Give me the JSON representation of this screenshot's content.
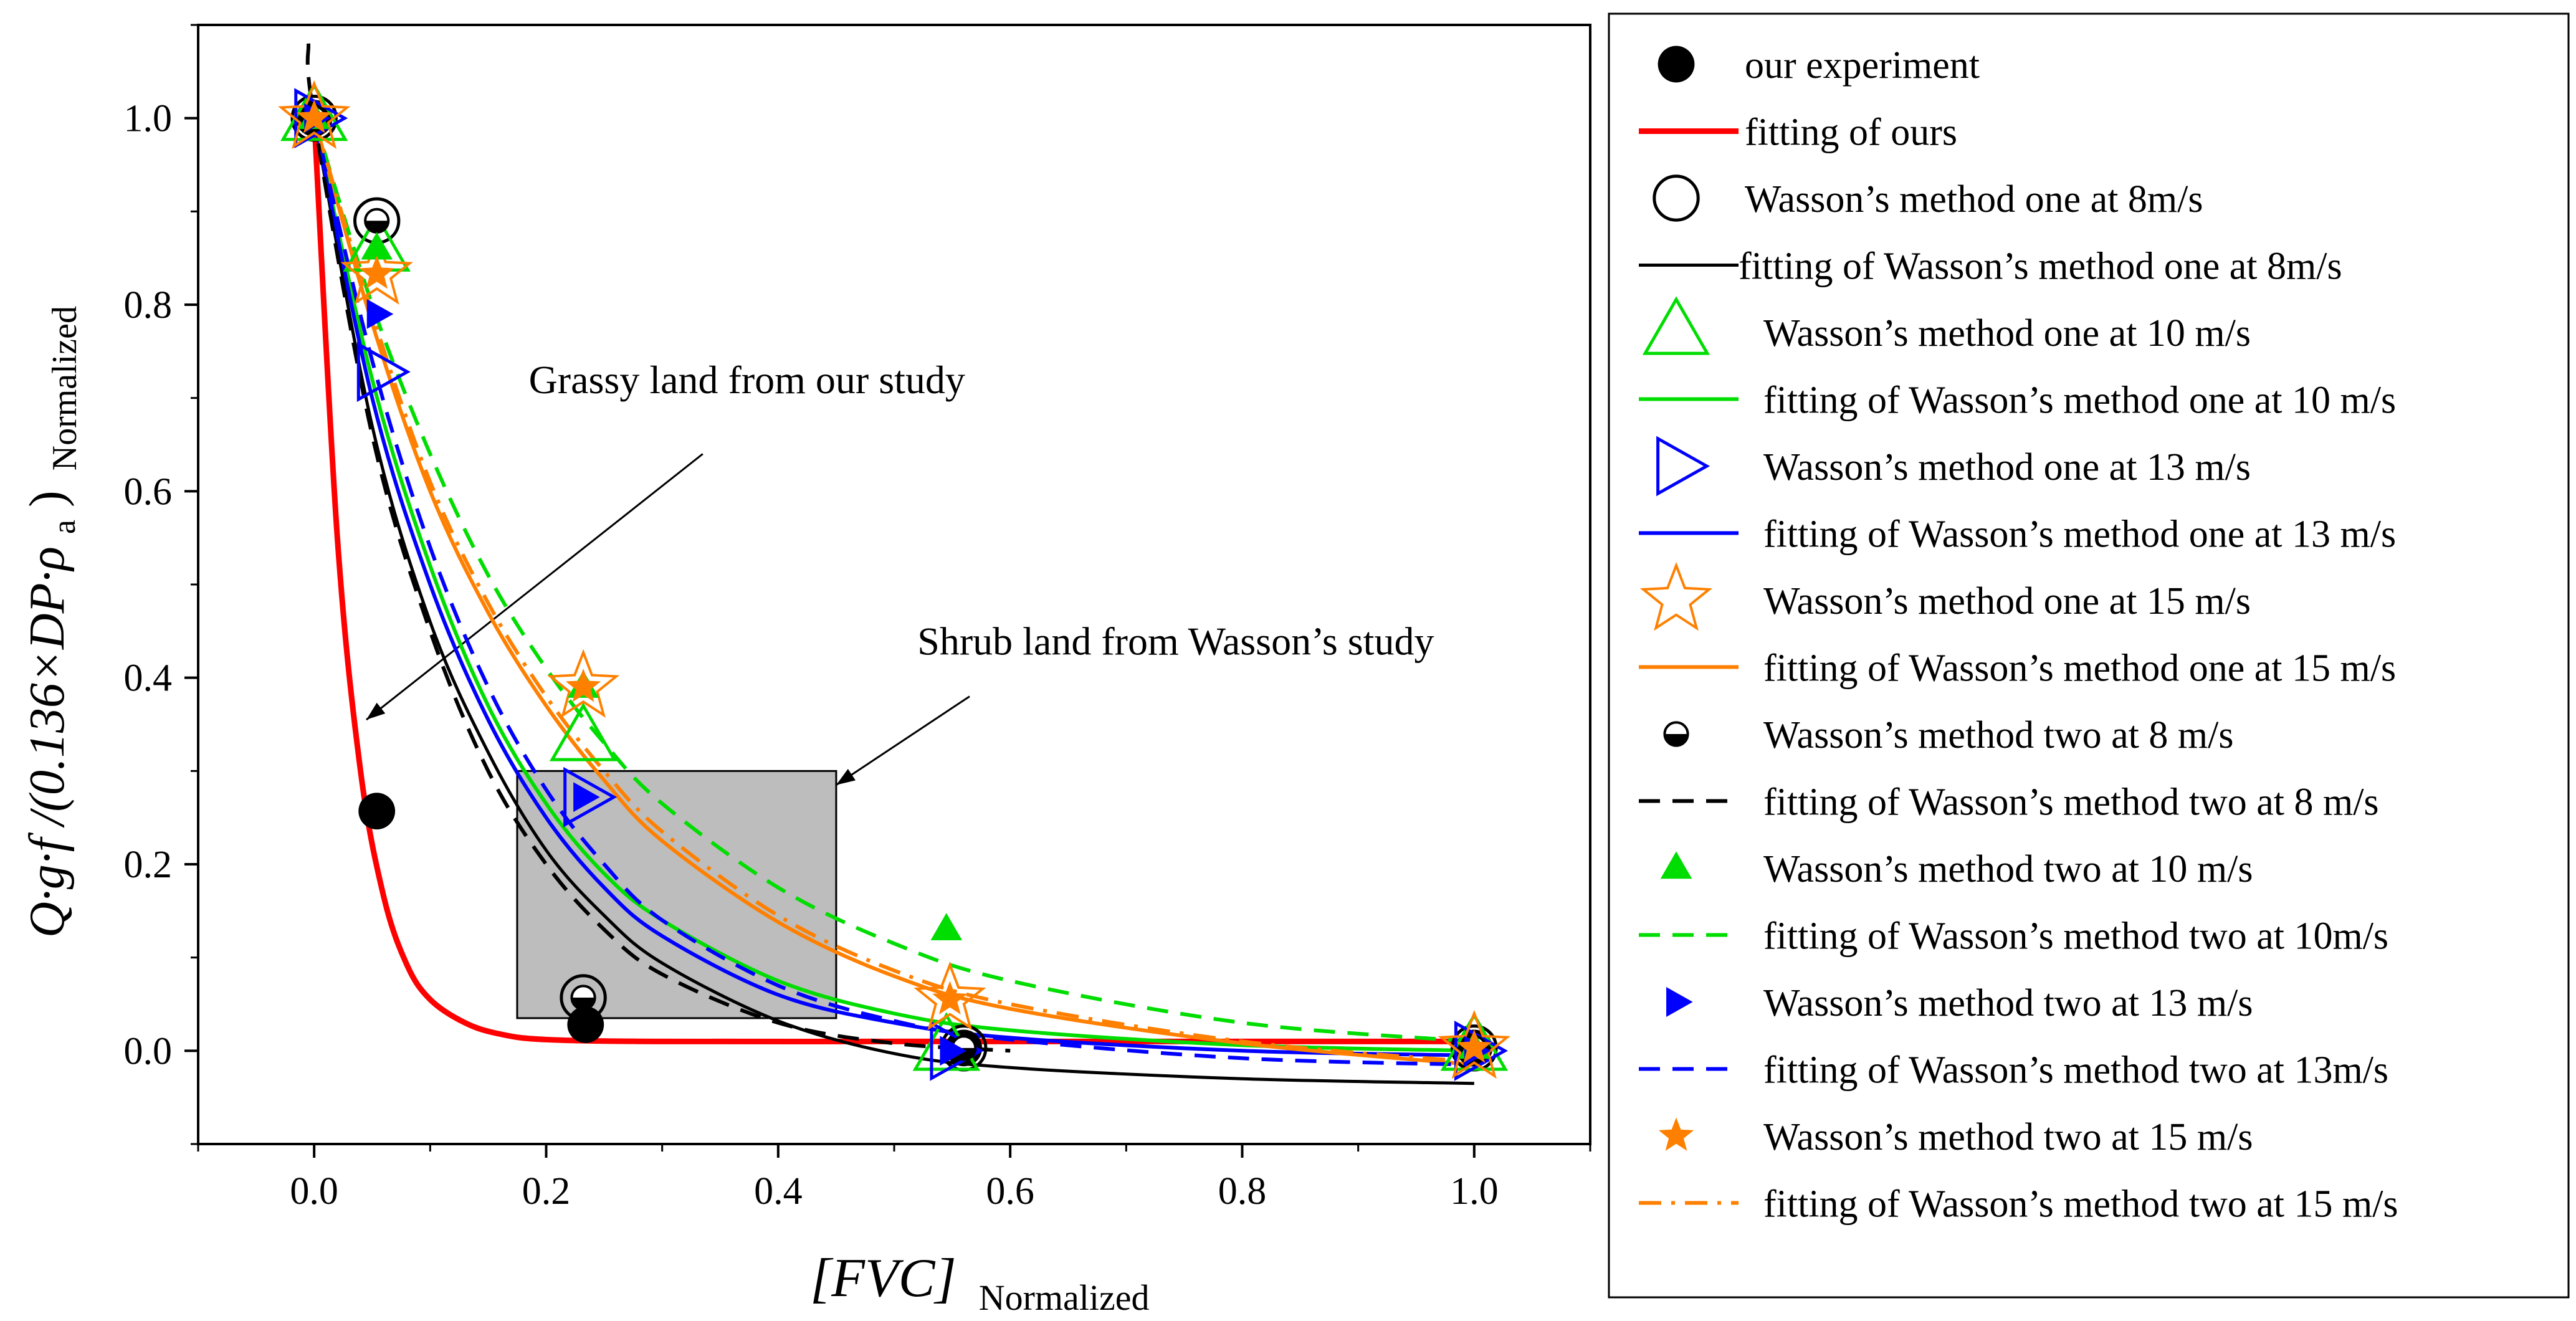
{
  "chart_data": {
    "type": "scatter",
    "xlabel": {
      "main": "[FVC]",
      "sub": "Normalized"
    },
    "ylabel": {
      "main": "Q·g·f /(0.136×DP·ρ",
      "sub_a": "a",
      "close": ")",
      "sub": "Normalized"
    },
    "xlim": [
      -0.1,
      1.1
    ],
    "ylim": [
      -0.1,
      1.1
    ],
    "xticks": [
      0.0,
      0.2,
      0.4,
      0.6,
      0.8,
      1.0
    ],
    "yticks": [
      0.0,
      0.2,
      0.4,
      0.6,
      0.8,
      1.0
    ],
    "xtick_labels": [
      "0.0",
      "0.2",
      "0.4",
      "0.6",
      "0.8",
      "1.0"
    ],
    "ytick_labels": [
      "0.0",
      "0.2",
      "0.4",
      "0.6",
      "0.8",
      "1.0"
    ],
    "annotations": [
      {
        "text": "Grassy land from our study",
        "point_to": [
          0.045,
          0.355
        ],
        "from": [
          0.335,
          0.64
        ],
        "label_at": [
          0.185,
          0.705
        ],
        "anchor": "start"
      },
      {
        "text": "Shrub land from Wasson’s study",
        "point_to": [
          0.45,
          0.285
        ],
        "from": [
          0.565,
          0.38
        ],
        "label_at": [
          0.52,
          0.425
        ],
        "anchor": "start"
      }
    ],
    "shaded_region": {
      "x": [
        0.175,
        0.45
      ],
      "y": [
        0.035,
        0.3
      ],
      "color": "#bdbdbd"
    },
    "series": [
      {
        "name": "our experiment",
        "kind": "marker",
        "marker": "filled-circle",
        "color": "#000000",
        "x": [
          0.0,
          0.054,
          0.234,
          0.56,
          1.0
        ],
        "y": [
          1.0,
          0.257,
          0.028,
          0.003,
          0.003
        ]
      },
      {
        "name": "fitting of ours",
        "kind": "line",
        "dash": "solid",
        "color": "#ff0000",
        "width": "thick",
        "x": [
          0.0,
          0.02,
          0.04,
          0.06,
          0.08,
          0.1,
          0.13,
          0.16,
          0.2,
          0.3,
          0.5,
          0.7,
          1.0
        ],
        "y": [
          1.0,
          0.55,
          0.3,
          0.165,
          0.092,
          0.055,
          0.03,
          0.018,
          0.012,
          0.01,
          0.01,
          0.01,
          0.01
        ]
      },
      {
        "name": "Wasson’s method one at 8m/s",
        "kind": "marker",
        "marker": "open-circle",
        "color": "#000000",
        "x": [
          0.0,
          0.054,
          0.232,
          0.56,
          1.0
        ],
        "y": [
          1.0,
          0.89,
          0.057,
          0.003,
          0.003
        ]
      },
      {
        "name": "fitting of Wasson’s method one at 8m/s",
        "kind": "line",
        "dash": "solid",
        "color": "#000000",
        "width": "thin",
        "x": [
          0.0,
          0.05,
          0.1,
          0.15,
          0.2,
          0.25,
          0.3,
          0.4,
          0.5,
          0.6,
          0.8,
          1.0
        ],
        "y": [
          1.0,
          0.67,
          0.46,
          0.32,
          0.215,
          0.145,
          0.094,
          0.032,
          -0.003,
          -0.018,
          -0.03,
          -0.035
        ]
      },
      {
        "name": "Wasson’s method one at 10 m/s",
        "kind": "marker",
        "marker": "open-triangle-up",
        "color": "#00dd00",
        "x": [
          0.0,
          0.054,
          0.232,
          0.545,
          1.0
        ],
        "y": [
          1.0,
          0.86,
          0.335,
          0.003,
          0.003
        ]
      },
      {
        "name": "fitting of Wasson’s method one at 10 m/s",
        "kind": "line",
        "dash": "solid",
        "color": "#00dd00",
        "width": "normal",
        "x": [
          0.0,
          0.05,
          0.1,
          0.15,
          0.2,
          0.25,
          0.3,
          0.4,
          0.5,
          0.6,
          0.8,
          1.0
        ],
        "y": [
          1.0,
          0.72,
          0.52,
          0.37,
          0.265,
          0.19,
          0.14,
          0.075,
          0.04,
          0.022,
          0.006,
          0.0
        ]
      },
      {
        "name": "Wasson’s method one at 13 m/s",
        "kind": "marker",
        "marker": "open-triangle-right",
        "color": "#0000ff",
        "x": [
          0.0,
          0.054,
          0.232,
          0.548,
          1.0
        ],
        "y": [
          1.0,
          0.728,
          0.272,
          0.0,
          0.0
        ]
      },
      {
        "name": "fitting of Wasson’s method one at 13 m/s",
        "kind": "line",
        "dash": "solid",
        "color": "#0000ff",
        "width": "normal",
        "x": [
          0.0,
          0.05,
          0.1,
          0.15,
          0.2,
          0.25,
          0.3,
          0.4,
          0.5,
          0.6,
          0.8,
          1.0
        ],
        "y": [
          1.0,
          0.7,
          0.5,
          0.355,
          0.25,
          0.175,
          0.123,
          0.06,
          0.03,
          0.014,
          0.0,
          -0.005
        ]
      },
      {
        "name": "Wasson’s method one at 15 m/s",
        "kind": "marker",
        "marker": "open-star",
        "color": "#ff8000",
        "x": [
          0.0,
          0.054,
          0.232,
          0.548,
          1.0
        ],
        "y": [
          1.0,
          0.833,
          0.39,
          0.055,
          0.003
        ]
      },
      {
        "name": "fitting of Wasson’s method one at 15 m/s",
        "kind": "line",
        "dash": "solid",
        "color": "#ff8000",
        "width": "normal",
        "x": [
          0.0,
          0.05,
          0.1,
          0.15,
          0.2,
          0.25,
          0.3,
          0.4,
          0.5,
          0.6,
          0.8,
          1.0
        ],
        "y": [
          1.0,
          0.78,
          0.6,
          0.47,
          0.37,
          0.29,
          0.225,
          0.138,
          0.08,
          0.045,
          0.008,
          -0.015
        ]
      },
      {
        "name": "Wasson’s method two at 8 m/s",
        "kind": "marker",
        "marker": "half-circle",
        "color": "#000000",
        "x": [
          0.0,
          0.054,
          0.232,
          0.56,
          1.0
        ],
        "y": [
          1.0,
          0.89,
          0.057,
          0.003,
          0.003
        ]
      },
      {
        "name": "fitting of Wasson’s method two at 8 m/s",
        "kind": "line",
        "dash": "dash",
        "color": "#000000",
        "width": "normal",
        "x": [
          -0.005,
          0.0,
          0.05,
          0.1,
          0.15,
          0.2,
          0.25,
          0.3,
          0.4,
          0.5,
          0.6
        ],
        "y": [
          1.08,
          1.0,
          0.66,
          0.45,
          0.3,
          0.2,
          0.13,
          0.082,
          0.03,
          0.008,
          0.0
        ]
      },
      {
        "name": "Wasson’s method two at 10 m/s",
        "kind": "marker",
        "marker": "filled-triangle-up",
        "color": "#00dd00",
        "x": [
          0.0,
          0.054,
          0.232,
          0.545,
          1.0
        ],
        "y": [
          1.0,
          0.86,
          0.39,
          0.13,
          0.003
        ]
      },
      {
        "name": "fitting of Wasson’s method two at 10m/s",
        "kind": "line",
        "dash": "dash",
        "color": "#00dd00",
        "width": "normal",
        "x": [
          0.0,
          0.05,
          0.1,
          0.15,
          0.2,
          0.25,
          0.3,
          0.4,
          0.5,
          0.6,
          0.8,
          1.0
        ],
        "y": [
          1.0,
          0.8,
          0.64,
          0.51,
          0.41,
          0.33,
          0.265,
          0.175,
          0.115,
          0.075,
          0.03,
          0.01
        ]
      },
      {
        "name": "Wasson’s method two at 13 m/s",
        "kind": "marker",
        "marker": "filled-triangle-right",
        "color": "#0000ff",
        "x": [
          0.0,
          0.054,
          0.232,
          0.548,
          1.0
        ],
        "y": [
          1.0,
          0.79,
          0.272,
          0.0,
          0.0
        ]
      },
      {
        "name": "fitting of Wasson’s method two at 13m/s",
        "kind": "line",
        "dash": "dash",
        "color": "#0000ff",
        "width": "normal",
        "x": [
          0.0,
          0.05,
          0.1,
          0.15,
          0.2,
          0.25,
          0.3,
          0.4,
          0.5,
          0.6,
          0.8,
          1.0
        ],
        "y": [
          1.0,
          0.74,
          0.54,
          0.39,
          0.28,
          0.2,
          0.14,
          0.07,
          0.032,
          0.012,
          -0.008,
          -0.015
        ]
      },
      {
        "name": "Wasson’s method two at 15 m/s",
        "kind": "marker",
        "marker": "filled-star",
        "color": "#ff8000",
        "x": [
          0.0,
          0.054,
          0.232,
          0.548,
          1.0
        ],
        "y": [
          1.0,
          0.833,
          0.39,
          0.055,
          0.003
        ]
      },
      {
        "name": "fitting of Wasson’s method two at 15 m/s",
        "kind": "line",
        "dash": "dashdot",
        "color": "#ff8000",
        "width": "normal",
        "x": [
          0.0,
          0.05,
          0.1,
          0.15,
          0.2,
          0.25,
          0.3,
          0.4,
          0.5,
          0.6,
          0.8,
          1.0
        ],
        "y": [
          1.0,
          0.79,
          0.61,
          0.48,
          0.38,
          0.3,
          0.235,
          0.145,
          0.086,
          0.05,
          0.01,
          -0.012
        ]
      }
    ],
    "legend": {
      "placement": "right-outside",
      "entries": [
        "our experiment",
        "fitting of ours",
        "Wasson’s method one at 8m/s",
        "fitting of Wasson’s method one at 8m/s",
        "Wasson’s method one at 10 m/s",
        "fitting of Wasson’s method one at 10 m/s",
        "Wasson’s method one at 13 m/s",
        "fitting of Wasson’s method one at 13 m/s",
        "Wasson’s method one at 15 m/s",
        "fitting of Wasson’s method one at 15 m/s",
        "Wasson’s method two at 8 m/s",
        "fitting of Wasson’s method two at 8 m/s",
        "Wasson’s method two at 10 m/s",
        "fitting of Wasson’s method two at 10m/s",
        "Wasson’s method two at 13 m/s",
        "fitting of Wasson’s method two at 13m/s",
        "Wasson’s method two at 15 m/s",
        "fitting of Wasson’s method two at 15 m/s"
      ]
    }
  }
}
